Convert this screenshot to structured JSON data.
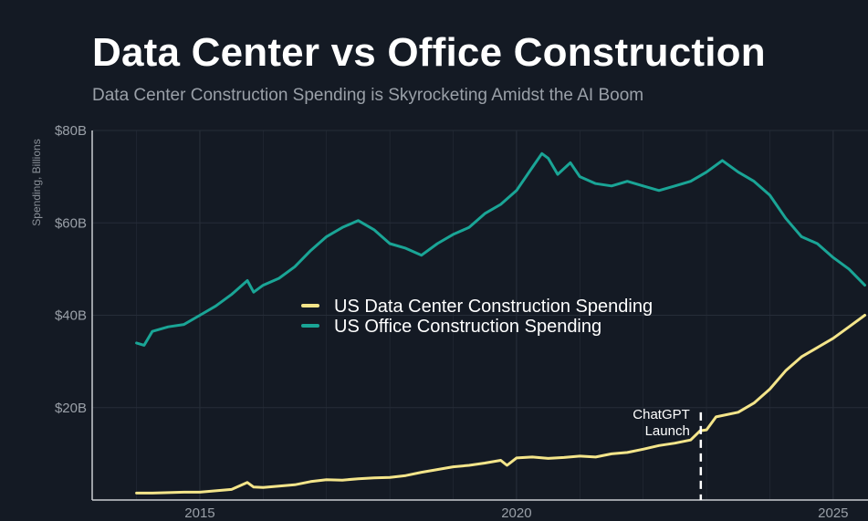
{
  "title": "Data Center vs Office Construction",
  "subtitle": "Data Center Construction Spending is Skyrocketing Amidst the AI Boom",
  "colors": {
    "background": "#141a24",
    "grid": "#262d38",
    "axis": "#c9ccd1",
    "data_center": "#f4e58a",
    "office": "#1aa596"
  },
  "chart_data": {
    "type": "line",
    "title": "Data Center vs Office Construction",
    "subtitle": "Data Center Construction Spending is Skyrocketing Amidst the AI Boom",
    "xlabel": "",
    "ylabel": "Spending, Billions",
    "xlim": [
      2013.3,
      2025.55
    ],
    "ylim": [
      0,
      80
    ],
    "grid": true,
    "legend_position": "center",
    "x_ticks": [
      {
        "value": 2015,
        "label": "2015"
      },
      {
        "value": 2020,
        "label": "2020"
      },
      {
        "value": 2025,
        "label": "2025"
      }
    ],
    "y_ticks": [
      {
        "value": 20,
        "label": "$20B"
      },
      {
        "value": 40,
        "label": "$40B"
      },
      {
        "value": 60,
        "label": "$60B"
      },
      {
        "value": 80,
        "label": "$80B"
      }
    ],
    "series": [
      {
        "name": "US Data Center Construction Spending",
        "color": "#f4e58a",
        "points": [
          [
            2014.0,
            1.5
          ],
          [
            2014.25,
            1.5
          ],
          [
            2014.5,
            1.6
          ],
          [
            2014.75,
            1.7
          ],
          [
            2015.0,
            1.7
          ],
          [
            2015.25,
            2.0
          ],
          [
            2015.5,
            2.3
          ],
          [
            2015.75,
            3.8
          ],
          [
            2015.85,
            2.8
          ],
          [
            2016.0,
            2.7
          ],
          [
            2016.25,
            3.0
          ],
          [
            2016.5,
            3.3
          ],
          [
            2016.75,
            4.0
          ],
          [
            2017.0,
            4.4
          ],
          [
            2017.25,
            4.3
          ],
          [
            2017.5,
            4.6
          ],
          [
            2017.75,
            4.8
          ],
          [
            2018.0,
            4.9
          ],
          [
            2018.25,
            5.3
          ],
          [
            2018.5,
            6.0
          ],
          [
            2018.75,
            6.6
          ],
          [
            2019.0,
            7.2
          ],
          [
            2019.25,
            7.5
          ],
          [
            2019.5,
            8.0
          ],
          [
            2019.75,
            8.6
          ],
          [
            2019.85,
            7.5
          ],
          [
            2020.0,
            9.1
          ],
          [
            2020.25,
            9.3
          ],
          [
            2020.5,
            9.0
          ],
          [
            2020.75,
            9.2
          ],
          [
            2021.0,
            9.5
          ],
          [
            2021.25,
            9.3
          ],
          [
            2021.5,
            10.0
          ],
          [
            2021.75,
            10.3
          ],
          [
            2022.0,
            11.0
          ],
          [
            2022.25,
            11.8
          ],
          [
            2022.5,
            12.3
          ],
          [
            2022.75,
            13.0
          ],
          [
            2022.9,
            15.0
          ],
          [
            2023.0,
            15.2
          ],
          [
            2023.15,
            18.0
          ],
          [
            2023.5,
            19.0
          ],
          [
            2023.75,
            21.0
          ],
          [
            2024.0,
            24.0
          ],
          [
            2024.25,
            28.0
          ],
          [
            2024.5,
            31.0
          ],
          [
            2024.75,
            33.0
          ],
          [
            2025.0,
            35.0
          ],
          [
            2025.25,
            37.5
          ],
          [
            2025.5,
            40.0
          ]
        ]
      },
      {
        "name": "US Office Construction Spending",
        "color": "#1aa596",
        "points": [
          [
            2014.0,
            34.0
          ],
          [
            2014.12,
            33.5
          ],
          [
            2014.25,
            36.5
          ],
          [
            2014.5,
            37.5
          ],
          [
            2014.75,
            38.0
          ],
          [
            2015.0,
            40.0
          ],
          [
            2015.25,
            42.0
          ],
          [
            2015.5,
            44.5
          ],
          [
            2015.75,
            47.5
          ],
          [
            2015.85,
            45.0
          ],
          [
            2016.0,
            46.5
          ],
          [
            2016.25,
            48.0
          ],
          [
            2016.5,
            50.5
          ],
          [
            2016.75,
            54.0
          ],
          [
            2017.0,
            57.0
          ],
          [
            2017.25,
            59.0
          ],
          [
            2017.5,
            60.5
          ],
          [
            2017.75,
            58.5
          ],
          [
            2018.0,
            55.5
          ],
          [
            2018.25,
            54.5
          ],
          [
            2018.5,
            53.0
          ],
          [
            2018.75,
            55.5
          ],
          [
            2019.0,
            57.5
          ],
          [
            2019.25,
            59.0
          ],
          [
            2019.5,
            62.0
          ],
          [
            2019.75,
            64.0
          ],
          [
            2020.0,
            67.0
          ],
          [
            2020.25,
            72.0
          ],
          [
            2020.4,
            75.0
          ],
          [
            2020.5,
            74.0
          ],
          [
            2020.65,
            70.5
          ],
          [
            2020.85,
            73.0
          ],
          [
            2021.0,
            70.0
          ],
          [
            2021.25,
            68.5
          ],
          [
            2021.5,
            68.0
          ],
          [
            2021.75,
            69.0
          ],
          [
            2022.0,
            68.0
          ],
          [
            2022.25,
            67.0
          ],
          [
            2022.5,
            68.0
          ],
          [
            2022.75,
            69.0
          ],
          [
            2023.0,
            71.0
          ],
          [
            2023.25,
            73.5
          ],
          [
            2023.5,
            71.0
          ],
          [
            2023.75,
            69.0
          ],
          [
            2024.0,
            66.0
          ],
          [
            2024.25,
            61.0
          ],
          [
            2024.5,
            57.0
          ],
          [
            2024.75,
            55.5
          ],
          [
            2025.0,
            52.5
          ],
          [
            2025.25,
            50.0
          ],
          [
            2025.5,
            46.5
          ]
        ]
      }
    ],
    "annotations": [
      {
        "text_lines": [
          "ChatGPT",
          "Launch"
        ],
        "x": 2022.91,
        "y_from": 0,
        "y_to": 19,
        "style": "dashed"
      }
    ]
  }
}
